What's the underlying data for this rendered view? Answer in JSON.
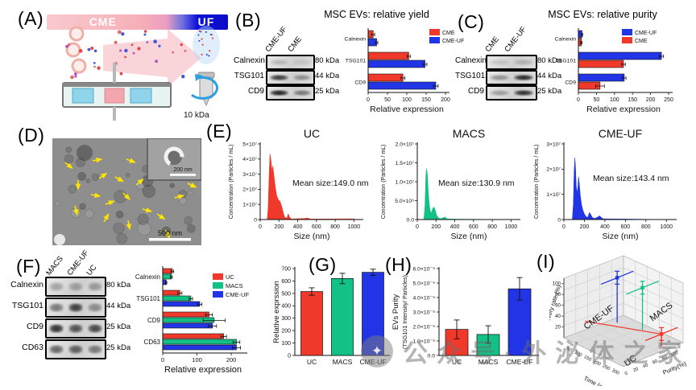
{
  "figure": {
    "labels": {
      "a": "(A)",
      "b": "(B)",
      "c": "(C)",
      "d": "(D)",
      "e": "(E)",
      "f": "(F)",
      "g": "(G)",
      "h": "(H)",
      "i": "(I)"
    }
  },
  "colors": {
    "red": "#f0382b",
    "green": "#12c186",
    "blue": "#2135e6",
    "banner_pink": "#f6afb8",
    "banner_blue": "#0d0ed6"
  },
  "panel_a": {
    "cme_label": "CME",
    "uf_label": "UF",
    "cutoff_label": "10 kDa"
  },
  "panel_b": {
    "title": "MSC EVs: relative yield",
    "blot": {
      "lanes": [
        "CME-UF",
        "CME"
      ],
      "rows": [
        {
          "name": "Calnexin",
          "kda": "80 kDa"
        },
        {
          "name": "TSG101",
          "kda": "44 kDa"
        },
        {
          "name": "CD9",
          "kda": "25 kDa"
        }
      ],
      "band_intensity": [
        [
          0.18,
          0.1
        ],
        [
          0.82,
          0.38
        ],
        [
          0.95,
          0.5
        ]
      ]
    }
  },
  "panel_c": {
    "title": "MSC EVs: relative purity",
    "blot": {
      "lanes": [
        "CME",
        "CME-UF"
      ],
      "rows": [
        {
          "name": "Calnexin",
          "kda": "80 kDa"
        },
        {
          "name": "TSG101",
          "kda": "44 kDa"
        },
        {
          "name": "CD9",
          "kda": "25 kDa"
        }
      ],
      "band_intensity": [
        [
          0.12,
          0.2
        ],
        [
          0.38,
          0.92
        ],
        [
          0.32,
          0.88
        ]
      ]
    }
  },
  "panel_d": {
    "scalebar_main": "500 nm",
    "scalebar_inset": "200 nm"
  },
  "panel_f": {
    "blot": {
      "lanes": [
        "MACS",
        "CME-UF",
        "UC"
      ],
      "rows": [
        {
          "name": "Calnexin",
          "kda": "80 kDa"
        },
        {
          "name": "TSG101",
          "kda": "44 kDa"
        },
        {
          "name": "CD9",
          "kda": "25 kDa"
        },
        {
          "name": "CD63",
          "kda": "25 kDa"
        }
      ],
      "band_intensity": [
        [
          0.3,
          0.3,
          0.34
        ],
        [
          0.52,
          0.82,
          0.42
        ],
        [
          0.88,
          0.72,
          0.78
        ],
        [
          0.62,
          0.66,
          0.52
        ]
      ]
    }
  },
  "watermark": {
    "text": "公众号·外泌体之家",
    "logo_glyph": "✦"
  },
  "chart_data": [
    {
      "id": "chart-b",
      "type": "bar",
      "orientation": "horizontal",
      "title": "MSC EVs: relative yield",
      "categories": [
        "Calnexin",
        "TSG101",
        "CD9"
      ],
      "series": [
        {
          "name": "CME",
          "color": "#f0382b",
          "values": [
            13,
            105,
            90
          ],
          "errors": [
            4,
            4,
            5
          ]
        },
        {
          "name": "CME-UF",
          "color": "#2135e6",
          "values": [
            22,
            147,
            175
          ],
          "errors": [
            3,
            5,
            6
          ]
        }
      ],
      "xlabel": "Relative expression",
      "xlim": [
        0,
        200
      ],
      "xticks": [
        0,
        50,
        100,
        150,
        200
      ],
      "legend_position": "top-right"
    },
    {
      "id": "chart-c",
      "type": "bar",
      "orientation": "horizontal",
      "title": "MSC EVs: relative purity",
      "categories": [
        "Calnexin",
        "TSG101",
        "CD9"
      ],
      "series": [
        {
          "name": "CME-UF",
          "color": "#2135e6",
          "values": [
            10,
            230,
            127
          ],
          "errors": [
            2,
            6,
            5
          ]
        },
        {
          "name": "CME",
          "color": "#f0382b",
          "values": [
            8,
            125,
            60
          ],
          "errors": [
            2,
            5,
            12
          ]
        }
      ],
      "xlabel": "Relative expression",
      "xlim": [
        0,
        250
      ],
      "xticks": [
        0,
        50,
        100,
        150,
        200,
        250
      ],
      "legend_position": "top-right"
    },
    {
      "id": "chart-e-uc",
      "type": "area",
      "title": "UC",
      "color": "#f0382b",
      "mean_label": "Mean size:149.0 nm",
      "xlabel": "Size (nm)",
      "ylabel": "Concentration (Particles / mL)",
      "xlim": [
        0,
        1100
      ],
      "xticks": [
        0,
        200,
        400,
        600,
        800,
        1000
      ],
      "ymax": 5,
      "ytick_labels": [
        "0",
        "1×10⁷",
        "2×10⁷",
        "3×10⁷",
        "4×10⁷",
        "5×10⁷"
      ],
      "points": [
        [
          0,
          0
        ],
        [
          75,
          0
        ],
        [
          85,
          0.8
        ],
        [
          95,
          3.0
        ],
        [
          105,
          4.35
        ],
        [
          112,
          4.1
        ],
        [
          120,
          3.6
        ],
        [
          128,
          3.2
        ],
        [
          135,
          3.55
        ],
        [
          145,
          3.0
        ],
        [
          158,
          2.3
        ],
        [
          175,
          1.6
        ],
        [
          195,
          1.3
        ],
        [
          212,
          1.2
        ],
        [
          230,
          0.85
        ],
        [
          248,
          0.4
        ],
        [
          262,
          0.15
        ],
        [
          285,
          0.1
        ],
        [
          300,
          0.38
        ],
        [
          312,
          0.18
        ],
        [
          330,
          0.04
        ],
        [
          470,
          0.07
        ],
        [
          505,
          0.1
        ],
        [
          540,
          0.03
        ],
        [
          980,
          0.05
        ],
        [
          1040,
          0
        ]
      ]
    },
    {
      "id": "chart-e-macs",
      "type": "area",
      "title": "MACS",
      "color": "#12c186",
      "mean_label": "Mean size:130.9 nm",
      "xlabel": "Size (nm)",
      "ylabel": "Concentration (Particles / mL)",
      "xlim": [
        0,
        1100
      ],
      "xticks": [
        0,
        200,
        400,
        600,
        800,
        1000
      ],
      "ymax": 2.0,
      "ytick_labels": [
        "0.0",
        "5.0×10⁶",
        "1.0×10⁷",
        "1.5×10⁷",
        "2.0×10⁷"
      ],
      "points": [
        [
          0,
          0
        ],
        [
          70,
          0
        ],
        [
          82,
          0.35
        ],
        [
          92,
          1.2
        ],
        [
          100,
          1.35
        ],
        [
          108,
          1.18
        ],
        [
          118,
          0.72
        ],
        [
          128,
          0.4
        ],
        [
          140,
          0.22
        ],
        [
          152,
          0.18
        ],
        [
          165,
          0.3
        ],
        [
          178,
          0.33
        ],
        [
          192,
          0.25
        ],
        [
          205,
          0.12
        ],
        [
          225,
          0.05
        ],
        [
          250,
          0.02
        ],
        [
          295,
          0.07
        ],
        [
          315,
          0.02
        ],
        [
          420,
          0.01
        ],
        [
          1040,
          0
        ]
      ]
    },
    {
      "id": "chart-e-cmeuf",
      "type": "area",
      "title": "CME-UF",
      "color": "#2135e6",
      "mean_label": "Mean size:143.4 nm",
      "xlabel": "Size (nm)",
      "ylabel": "Concentration (Particles / mL)",
      "xlim": [
        0,
        1100
      ],
      "xticks": [
        0,
        200,
        400,
        600,
        800,
        1000
      ],
      "ymax": 3,
      "ytick_labels": [
        "0",
        "1×10⁷",
        "2×10⁷",
        "3×10⁷"
      ],
      "points": [
        [
          0,
          0
        ],
        [
          82,
          0
        ],
        [
          92,
          0.6
        ],
        [
          100,
          1.9
        ],
        [
          107,
          2.45
        ],
        [
          113,
          2.1
        ],
        [
          120,
          1.35
        ],
        [
          128,
          1.05
        ],
        [
          136,
          1.25
        ],
        [
          143,
          1.7
        ],
        [
          150,
          1.45
        ],
        [
          160,
          0.95
        ],
        [
          172,
          0.6
        ],
        [
          185,
          0.38
        ],
        [
          200,
          0.22
        ],
        [
          215,
          0.12
        ],
        [
          232,
          0.08
        ],
        [
          250,
          0.28
        ],
        [
          262,
          0.2
        ],
        [
          278,
          0.08
        ],
        [
          300,
          0.04
        ],
        [
          330,
          0.1
        ],
        [
          348,
          0.15
        ],
        [
          365,
          0.08
        ],
        [
          385,
          0.03
        ],
        [
          1040,
          0
        ]
      ]
    },
    {
      "id": "chart-f",
      "type": "bar",
      "orientation": "horizontal",
      "categories": [
        "Calnexin",
        "TSG101",
        "CD9",
        "CD63"
      ],
      "series": [
        {
          "name": "UC",
          "color": "#f0382b",
          "values": [
            28,
            50,
            135,
            178
          ],
          "errors": [
            4,
            6,
            10,
            8
          ]
        },
        {
          "name": "MACS",
          "color": "#12c186",
          "values": [
            25,
            82,
            150,
            215
          ],
          "errors": [
            3,
            5,
            32,
            10
          ]
        },
        {
          "name": "CME-UF",
          "color": "#2135e6",
          "values": [
            10,
            108,
            145,
            215
          ],
          "errors": [
            2,
            6,
            12,
            12
          ]
        }
      ],
      "xlabel": "Relative expression",
      "xlim": [
        0,
        235
      ],
      "xticks": [
        0,
        100,
        200
      ],
      "legend_position": "top-right"
    },
    {
      "id": "chart-g",
      "type": "bar",
      "orientation": "vertical",
      "ylabel": "Relative exprssion",
      "categories": [
        "UC",
        "MACS",
        "CME-UF"
      ],
      "colors": [
        "#f0382b",
        "#12c186",
        "#2135e6"
      ],
      "values": [
        515,
        620,
        670
      ],
      "errors": [
        30,
        42,
        25
      ],
      "ylim": [
        0,
        700
      ],
      "yticks": [
        0,
        100,
        200,
        300,
        400,
        500,
        600,
        700
      ],
      "ytick_labels": [
        "0",
        "100",
        "200",
        "300",
        "400",
        "500",
        "600",
        "700"
      ]
    },
    {
      "id": "chart-h",
      "type": "bar",
      "orientation": "vertical",
      "ylabel_lines": [
        "EVs Purity",
        "(TSG101 Intensity/ Particles)"
      ],
      "categories": [
        "UC",
        "MACS",
        "CME-UF"
      ],
      "colors": [
        "#f0382b",
        "#12c186",
        "#2135e6"
      ],
      "values": [
        1.8,
        1.45,
        4.6
      ],
      "errors": [
        0.65,
        0.6,
        0.78
      ],
      "ylim": [
        0,
        6
      ],
      "yticks": [
        0,
        1,
        2,
        3,
        4,
        5,
        6
      ],
      "ytick_labels": [
        "0.0",
        "1.0×10⁻⁹",
        "2.0×10⁻⁹",
        "3.0×10⁻⁹",
        "4.0×10⁻⁹",
        "5.0×10⁻⁹",
        "6.0×10⁻⁹"
      ]
    },
    {
      "id": "chart-i",
      "type": "scatter",
      "subtype": "3d",
      "zlabel": "Recovery rate (%)",
      "ztick_labels": [
        "20",
        "40",
        "60",
        "80",
        "100"
      ],
      "xlabel": "Time (min)",
      "xtick_labels": [
        "50",
        "100",
        "150",
        "200",
        "250",
        "300"
      ],
      "ylabel": "Purity(%)",
      "ytick_labels": [
        "0",
        "20",
        "40",
        "60",
        "80",
        "100"
      ],
      "points": [
        {
          "name": "CME-UF",
          "color": "#2135e6",
          "time": 40,
          "purity": 85,
          "recovery": 90
        },
        {
          "name": "MACS",
          "color": "#12c186",
          "time": 150,
          "purity": 95,
          "recovery": 85
        },
        {
          "name": "UC",
          "color": "#f0382b",
          "time": 300,
          "purity": 80,
          "recovery": 25
        }
      ]
    }
  ]
}
